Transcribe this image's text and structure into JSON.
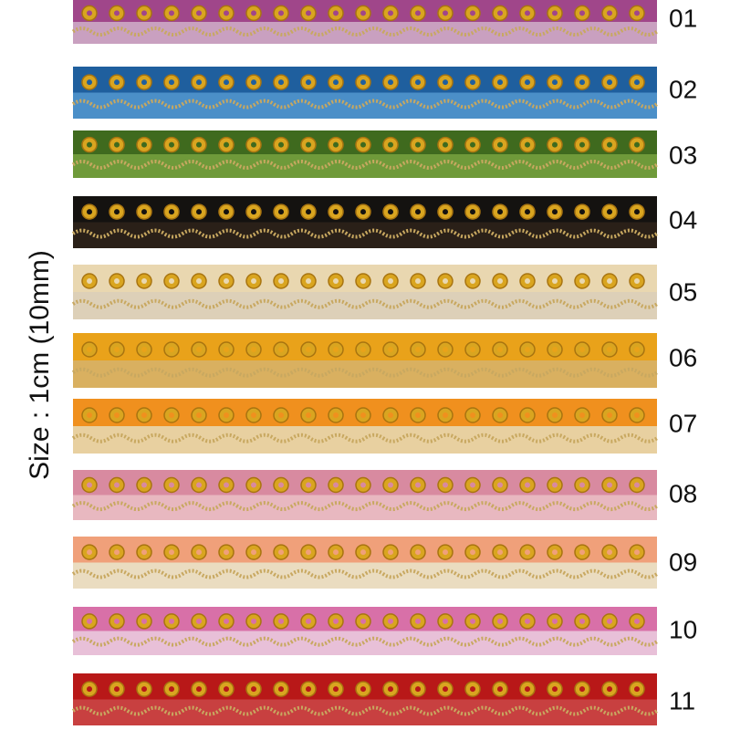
{
  "side_label": "Size : 1cm (10mm)",
  "ribbons": [
    {
      "label": "01"
    },
    {
      "label": "02"
    },
    {
      "label": "03"
    },
    {
      "label": "04"
    },
    {
      "label": "05"
    },
    {
      "label": "06"
    },
    {
      "label": "07"
    },
    {
      "label": "08"
    },
    {
      "label": "09"
    },
    {
      "label": "10"
    },
    {
      "label": "11"
    }
  ]
}
